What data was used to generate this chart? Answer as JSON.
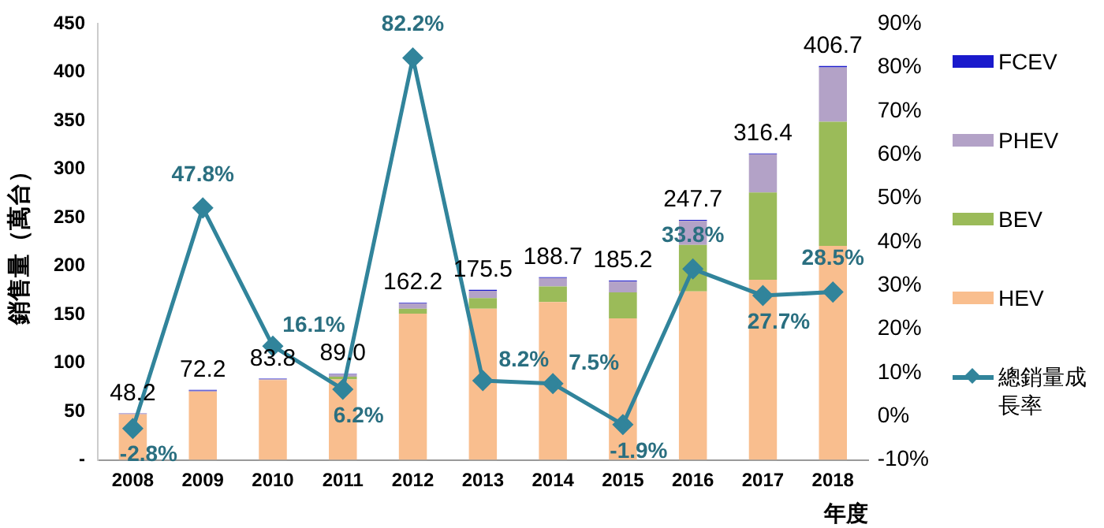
{
  "chart_data": {
    "type": "bar",
    "stacked": true,
    "ylabel": "銷售量（萬台）",
    "xlabel": "年度",
    "categories": [
      "2008",
      "2009",
      "2010",
      "2011",
      "2012",
      "2013",
      "2014",
      "2015",
      "2016",
      "2017",
      "2018"
    ],
    "series": [
      {
        "name": "HEV",
        "color": "#f9be8e",
        "values": [
          47,
          70.5,
          82.5,
          83,
          151,
          156,
          163,
          146,
          174,
          186,
          221
        ]
      },
      {
        "name": "BEV",
        "color": "#9bbb59",
        "values": [
          0,
          0,
          0,
          3,
          5,
          11,
          16,
          27,
          48,
          90,
          128
        ]
      },
      {
        "name": "PHEV",
        "color": "#b3a2c7",
        "values": [
          1,
          1,
          1,
          2.5,
          5.5,
          7.5,
          8.7,
          11.2,
          24.7,
          39.4,
          56.2
        ]
      },
      {
        "name": "FCEV",
        "color": "#1a1acc",
        "values": [
          0.2,
          0.7,
          0.3,
          0.5,
          0.7,
          1,
          1,
          1,
          1,
          1,
          1.5
        ]
      },
      {
        "name": "總銷量成長率",
        "type": "line",
        "axis": "y2",
        "color": "#31849b",
        "marker": "diamond",
        "values": [
          -2.8,
          47.8,
          16.1,
          6.2,
          82.2,
          8.2,
          7.5,
          -1.9,
          33.8,
          27.7,
          28.5
        ],
        "value_labels": [
          "-2.8%",
          "47.8%",
          "16.1%",
          "6.2%",
          "82.2%",
          "8.2%",
          "7.5%",
          "-1.9%",
          "33.8%",
          "27.7%",
          "28.5%"
        ]
      }
    ],
    "totals": [
      "48.2",
      "72.2",
      "83.8",
      "89.0",
      "162.2",
      "175.5",
      "188.7",
      "185.2",
      "247.7",
      "316.4",
      "406.7"
    ],
    "ylim": [
      0,
      450
    ],
    "yticks": [
      {
        "value": 0,
        "label": "-"
      },
      50,
      100,
      150,
      200,
      250,
      300,
      350,
      400,
      450
    ],
    "y2lim": [
      -10,
      90
    ],
    "y2ticks": [
      {
        "value": -10,
        "label": "-10%"
      },
      {
        "value": 0,
        "label": "0%"
      },
      {
        "value": 10,
        "label": "10%"
      },
      {
        "value": 20,
        "label": "20%"
      },
      {
        "value": 30,
        "label": "30%"
      },
      {
        "value": 40,
        "label": "40%"
      },
      {
        "value": 50,
        "label": "50%"
      },
      {
        "value": 60,
        "label": "60%"
      },
      {
        "value": 70,
        "label": "70%"
      },
      {
        "value": 80,
        "label": "80%"
      },
      {
        "value": 90,
        "label": "90%"
      }
    ],
    "grid": false,
    "legend": "right"
  }
}
